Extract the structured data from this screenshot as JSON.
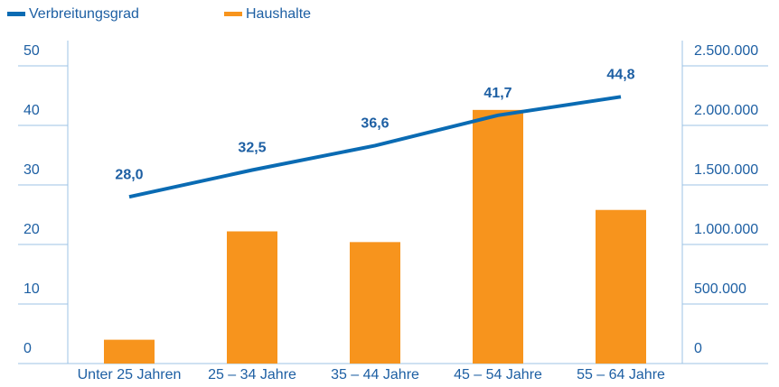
{
  "chart_data": {
    "type": "bar+line",
    "categories": [
      "Unter 25 Jahren",
      "25 – 34 Jahre",
      "35 – 44 Jahre",
      "45 – 54 Jahre",
      "55 – 64 Jahre"
    ],
    "series": [
      {
        "name": "Verbreitungsgrad",
        "type": "line",
        "color": "#0a6bb3",
        "values": [
          28.0,
          32.5,
          36.6,
          41.7,
          44.8
        ],
        "value_labels": [
          "28,0",
          "32,5",
          "36,6",
          "41,7",
          "44,8"
        ]
      },
      {
        "name": "Haushalte",
        "type": "bar",
        "axis": "y2",
        "color": "#f7941d",
        "values": [
          200000,
          1110000,
          1020000,
          2130000,
          1290000
        ]
      }
    ],
    "ylim": [
      0,
      50
    ],
    "yticks": [
      0,
      10,
      20,
      30,
      40,
      50
    ],
    "y2lim": [
      0,
      2500000
    ],
    "y2ticks": [
      0,
      {
        "value": 500000,
        "label": "500.000"
      },
      {
        "value": 1000000,
        "label": "1.000.000"
      },
      {
        "value": 1500000,
        "label": "1.500.000"
      },
      {
        "value": 2000000,
        "label": "2.000.000"
      },
      {
        "value": 2500000,
        "label": "2.500.000"
      }
    ]
  }
}
